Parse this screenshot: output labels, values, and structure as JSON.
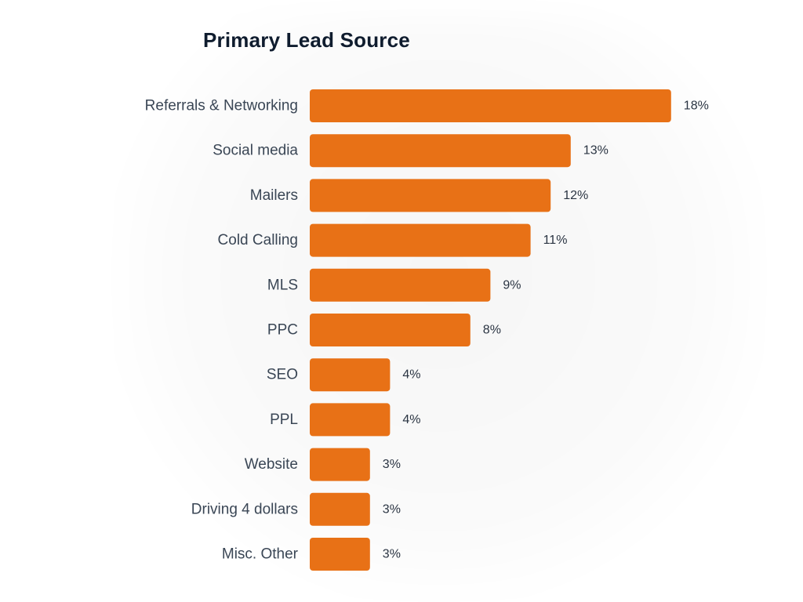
{
  "colors": {
    "bar": "#e87116",
    "title": "#0f1c2e",
    "label": "#3a4655",
    "value_label": "#2a3442"
  },
  "chart_data": {
    "type": "bar",
    "orientation": "horizontal",
    "title": "Primary Lead Source",
    "xlabel": "",
    "ylabel": "",
    "categories": [
      "Referrals & Networking",
      "Social media",
      "Mailers",
      "Cold Calling",
      "MLS",
      "PPC",
      "SEO",
      "PPL",
      "Website",
      "Driving 4 dollars",
      "Misc. Other"
    ],
    "values": [
      18,
      13,
      12,
      11,
      9,
      8,
      4,
      4,
      3,
      3,
      3
    ],
    "value_labels": [
      "18%",
      "13%",
      "12%",
      "11%",
      "9%",
      "8%",
      "4%",
      "4%",
      "3%",
      "3%",
      "3%"
    ],
    "unit": "%",
    "grid": false,
    "legend": "none"
  }
}
